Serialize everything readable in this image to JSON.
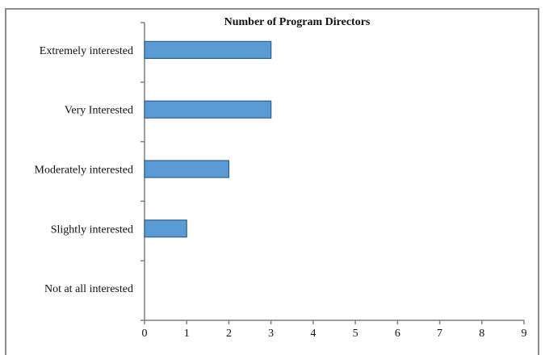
{
  "chart_data": {
    "type": "bar",
    "orientation": "horizontal",
    "title": "Number of Program Directors",
    "categories": [
      "Extremely interested",
      "Very Interested",
      "Moderately interested",
      "Slightly interested",
      "Not at all interested"
    ],
    "values": [
      3,
      3,
      2,
      1,
      0
    ],
    "xlim": [
      0,
      9
    ],
    "xticks": [
      "0",
      "1",
      "2",
      "3",
      "4",
      "5",
      "6",
      "7",
      "8",
      "9"
    ],
    "xlabel": "",
    "ylabel": "",
    "grid": false,
    "legend": "none",
    "colors": {
      "bar_fill": "#5b9bd5",
      "bar_stroke": "#2e5f8f",
      "axis": "#7f7f7f"
    }
  }
}
